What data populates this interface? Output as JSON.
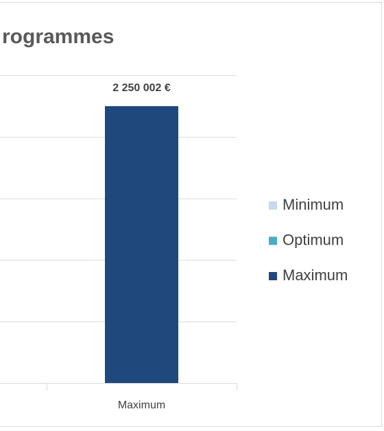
{
  "chart_data": {
    "type": "bar",
    "title": "rogrammes",
    "categories": [
      "Maximum"
    ],
    "series": [
      {
        "name": "Minimum",
        "color": "#c6d9f1",
        "values": [
          null
        ]
      },
      {
        "name": "Optimum",
        "color": "#4bacc6",
        "values": [
          null
        ]
      },
      {
        "name": "Maximum",
        "color": "#1f497d",
        "values": [
          2250002
        ],
        "value_labels": [
          "2 250 002 €"
        ]
      }
    ],
    "ylim": [
      0,
      2500000
    ],
    "yticks": [
      0,
      500000,
      1000000,
      1500000,
      2000000,
      2500000
    ],
    "grid": true,
    "stacked": true,
    "legend": "right"
  }
}
